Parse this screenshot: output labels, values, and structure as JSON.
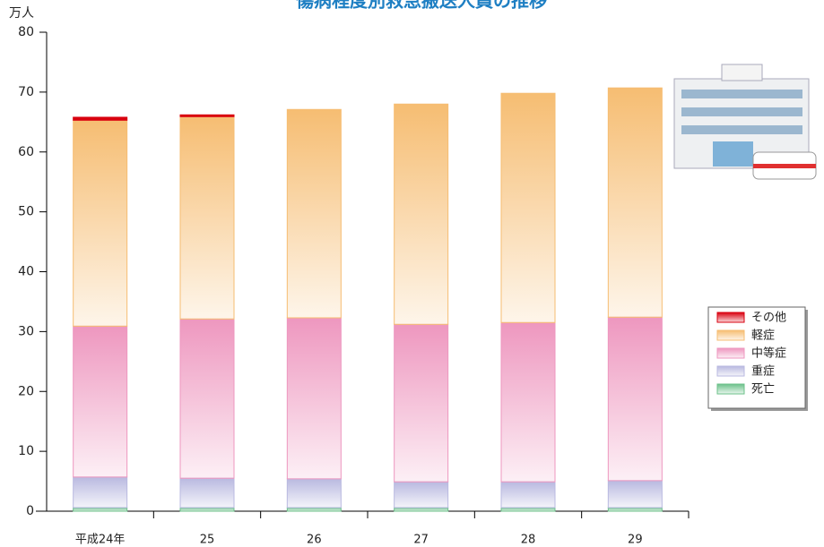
{
  "chart_data": {
    "type": "stacked_bar",
    "title": "傷病程度別救急搬送人員の推移",
    "y_unit": "万人",
    "categories": [
      "平成24年",
      "25",
      "26",
      "27",
      "28",
      "29"
    ],
    "series": [
      {
        "name": "死亡",
        "color": "#6cc18a",
        "values": [
          0.6,
          0.6,
          0.6,
          0.6,
          0.6,
          0.6
        ]
      },
      {
        "name": "重症",
        "color": "#b9b9e0",
        "values": [
          5.1,
          4.9,
          4.8,
          4.3,
          4.3,
          4.5
        ]
      },
      {
        "name": "中等症",
        "color": "#ee97bf",
        "values": [
          25.2,
          26.6,
          26.9,
          26.3,
          26.6,
          27.3
        ]
      },
      {
        "name": "軽症",
        "color": "#f6bd72",
        "values": [
          34.4,
          33.8,
          34.8,
          36.8,
          38.3,
          38.3
        ]
      },
      {
        "name": "その他",
        "color": "#d9000f",
        "values": [
          0.5,
          0.3,
          0,
          0,
          0,
          0
        ]
      }
    ],
    "ylim": [
      0,
      80
    ],
    "yticks": [
      0,
      10,
      20,
      30,
      40,
      50,
      60,
      70,
      80
    ]
  }
}
